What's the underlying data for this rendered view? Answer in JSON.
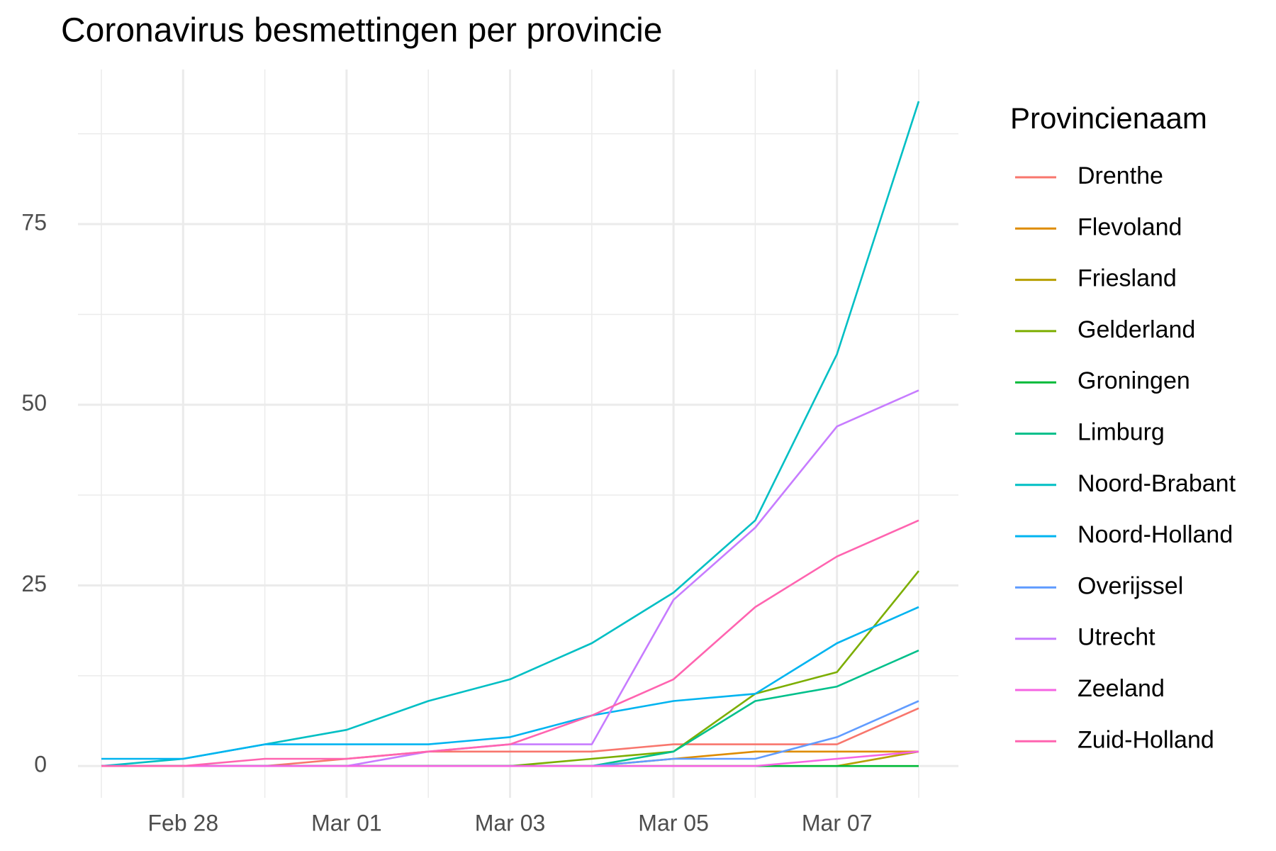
{
  "chart_data": {
    "type": "line",
    "title": "Coronavirus besmettingen per provincie",
    "legend_title": "Provincienaam",
    "legend_position": "right",
    "grid": true,
    "categories": [
      null,
      "Feb 28",
      null,
      "Mar 01",
      null,
      "Mar 03",
      null,
      "Mar 05",
      null,
      "Mar 07",
      null
    ],
    "ylim": [
      -4.4,
      96.4
    ],
    "yticks": [
      0,
      25,
      50,
      75
    ],
    "series": [
      {
        "name": "Drenthe",
        "color": "#F8766D",
        "values": [
          0,
          0,
          0,
          1,
          2,
          2,
          2,
          3,
          3,
          3,
          8
        ]
      },
      {
        "name": "Flevoland",
        "color": "#DE8C00",
        "values": [
          0,
          0,
          0,
          0,
          0,
          0,
          0,
          1,
          2,
          2,
          2
        ]
      },
      {
        "name": "Friesland",
        "color": "#B79F00",
        "values": [
          0,
          0,
          0,
          0,
          0,
          0,
          0,
          0,
          0,
          0,
          2
        ]
      },
      {
        "name": "Gelderland",
        "color": "#7CAE00",
        "values": [
          0,
          0,
          0,
          0,
          0,
          0,
          1,
          2,
          10,
          13,
          27
        ]
      },
      {
        "name": "Groningen",
        "color": "#00BA38",
        "values": [
          0,
          0,
          0,
          0,
          0,
          0,
          0,
          0,
          0,
          0,
          0
        ]
      },
      {
        "name": "Limburg",
        "color": "#00C08B",
        "values": [
          0,
          0,
          0,
          0,
          0,
          0,
          0,
          2,
          9,
          11,
          16
        ]
      },
      {
        "name": "Noord-Brabant",
        "color": "#00BFC4",
        "values": [
          0,
          1,
          3,
          5,
          9,
          12,
          17,
          24,
          34,
          57,
          92
        ]
      },
      {
        "name": "Noord-Holland",
        "color": "#00B4F0",
        "values": [
          1,
          1,
          3,
          3,
          3,
          4,
          7,
          9,
          10,
          17,
          22
        ]
      },
      {
        "name": "Overijssel",
        "color": "#619CFF",
        "values": [
          0,
          0,
          0,
          0,
          0,
          0,
          0,
          1,
          1,
          4,
          9
        ]
      },
      {
        "name": "Utrecht",
        "color": "#C77CFF",
        "values": [
          0,
          0,
          0,
          0,
          2,
          3,
          3,
          23,
          33,
          47,
          52
        ]
      },
      {
        "name": "Zeeland",
        "color": "#F564E3",
        "values": [
          0,
          0,
          0,
          0,
          0,
          0,
          0,
          0,
          0,
          1,
          2
        ]
      },
      {
        "name": "Zuid-Holland",
        "color": "#FF64B0",
        "values": [
          0,
          0,
          1,
          1,
          2,
          3,
          7,
          12,
          22,
          29,
          34
        ]
      }
    ]
  }
}
